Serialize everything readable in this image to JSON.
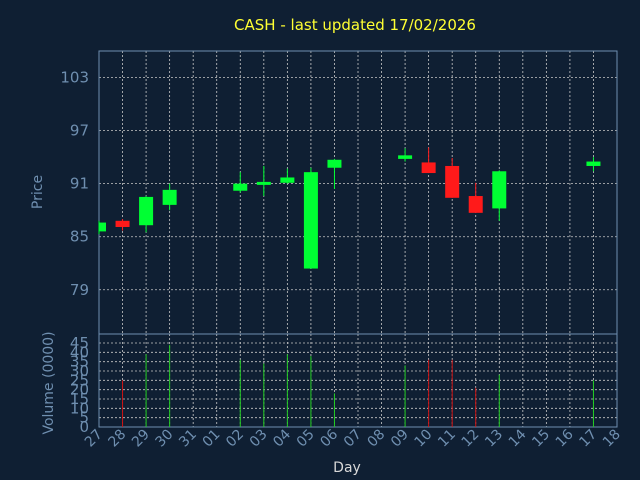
{
  "chart_data": {
    "type": "candlestick",
    "title": "CASH - last updated 17/02/2026",
    "xlabel": "Day",
    "price_panel": {
      "ylabel": "Price",
      "ylim": [
        74,
        106
      ],
      "yticks": [
        79,
        85,
        91,
        97,
        103
      ],
      "grid": true
    },
    "volume_panel": {
      "ylabel": "Volume (0000)",
      "ylim": [
        0,
        45
      ],
      "yticks": [
        0,
        5,
        10,
        15,
        20,
        25,
        30,
        35,
        40,
        45
      ],
      "grid": true
    },
    "x_ticks": [
      "27",
      "28",
      "29",
      "30",
      "31",
      "01",
      "02",
      "03",
      "04",
      "05",
      "06",
      "07",
      "08",
      "09",
      "10",
      "11",
      "12",
      "13",
      "14",
      "15",
      "16",
      "17",
      "18"
    ],
    "candles": [
      {
        "day": "27",
        "open": 85.6,
        "high": 86.8,
        "low": 85.3,
        "close": 86.6,
        "volume": 0
      },
      {
        "day": "28",
        "open": 86.8,
        "high": 87.0,
        "low": 85.7,
        "close": 86.1,
        "volume": 25
      },
      {
        "day": "29",
        "open": 86.3,
        "high": 89.6,
        "low": 85.5,
        "close": 89.5,
        "volume": 39
      },
      {
        "day": "30",
        "open": 88.6,
        "high": 91.0,
        "low": 88.0,
        "close": 90.3,
        "volume": 44
      },
      {
        "day": "02",
        "open": 90.2,
        "high": 92.3,
        "low": 90.0,
        "close": 91.0,
        "volume": 36
      },
      {
        "day": "03",
        "open": 91.0,
        "high": 93.0,
        "low": 89.6,
        "close": 91.2,
        "volume": 34
      },
      {
        "day": "04",
        "open": 91.1,
        "high": 92.7,
        "low": 91.0,
        "close": 91.7,
        "volume": 39
      },
      {
        "day": "05",
        "open": 81.4,
        "high": 92.8,
        "low": 81.4,
        "close": 92.3,
        "volume": 38
      },
      {
        "day": "06",
        "open": 92.8,
        "high": 93.8,
        "low": 90.4,
        "close": 93.7,
        "volume": 18
      },
      {
        "day": "09",
        "open": 93.8,
        "high": 95.0,
        "low": 93.5,
        "close": 94.2,
        "volume": 33
      },
      {
        "day": "10",
        "open": 93.4,
        "high": 95.1,
        "low": 92.2,
        "close": 92.2,
        "volume": 36
      },
      {
        "day": "11",
        "open": 93.0,
        "high": 93.9,
        "low": 89.4,
        "close": 89.4,
        "volume": 36
      },
      {
        "day": "12",
        "open": 89.6,
        "high": 91.1,
        "low": 87.7,
        "close": 87.7,
        "volume": 21
      },
      {
        "day": "13",
        "open": 88.2,
        "high": 92.5,
        "low": 86.8,
        "close": 92.4,
        "volume": 28
      },
      {
        "day": "17",
        "open": 93.0,
        "high": 94.0,
        "low": 92.4,
        "close": 93.5,
        "volume": 25
      }
    ],
    "colors": {
      "background": "#0f1f33",
      "up": "#00ff33",
      "down": "#ff1a1a",
      "volume_up": "#22cc22",
      "volume_down": "#cc1111",
      "grid": "#c8c8c8",
      "axis": "#6f8fb0",
      "title": "#ffff33"
    }
  }
}
